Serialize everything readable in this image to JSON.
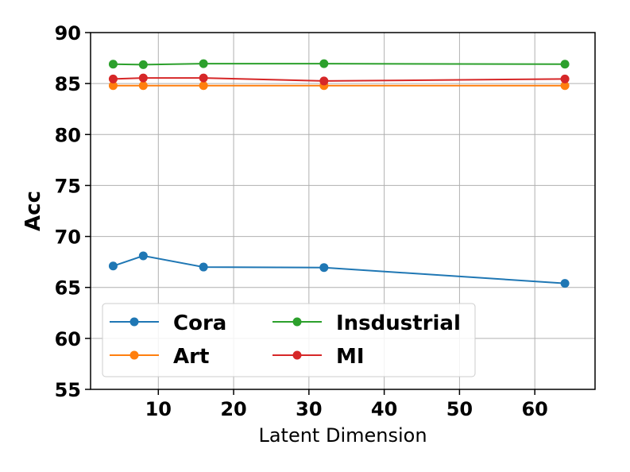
{
  "chart_data": {
    "type": "line",
    "xlabel": "Latent Dimension",
    "ylabel": "Acc",
    "xlim": [
      1,
      68
    ],
    "ylim": [
      55,
      90
    ],
    "xticks": [
      10,
      20,
      30,
      40,
      50,
      60
    ],
    "yticks": [
      55,
      60,
      65,
      70,
      75,
      80,
      85,
      90
    ],
    "grid": true,
    "legend_position": "lower-left",
    "x": [
      4,
      8,
      16,
      32,
      64
    ],
    "series": [
      {
        "name": "Cora",
        "color": "#1f77b4",
        "values": [
          67.1,
          68.1,
          67.0,
          66.95,
          65.4
        ]
      },
      {
        "name": "Art",
        "color": "#ff7f0e",
        "values": [
          84.8,
          84.8,
          84.8,
          84.8,
          84.8
        ]
      },
      {
        "name": "Insdustrial",
        "color": "#2ca02c",
        "values": [
          86.9,
          86.85,
          86.95,
          86.95,
          86.9
        ]
      },
      {
        "name": "MI",
        "color": "#d62728",
        "values": [
          85.45,
          85.55,
          85.55,
          85.25,
          85.45
        ]
      }
    ]
  }
}
